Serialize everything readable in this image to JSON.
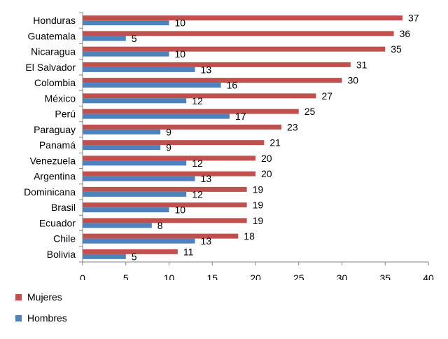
{
  "chart_data": {
    "type": "bar",
    "orientation": "horizontal",
    "categories": [
      "Honduras",
      "Guatemala",
      "Nicaragua",
      "El Salvador",
      "Colombia",
      "México",
      "Perú",
      "Paraguay",
      "Panamá",
      "Venezuela",
      "Argentina",
      "Dominicana",
      "Brasil",
      "Ecuador",
      "Chile",
      "Bolivia"
    ],
    "series": [
      {
        "name": "Mujeres",
        "color": "#C0504D",
        "values": [
          37,
          36,
          35,
          31,
          30,
          27,
          25,
          23,
          21,
          20,
          20,
          19,
          19,
          19,
          18,
          11
        ]
      },
      {
        "name": "Hombres",
        "color": "#4F81BD",
        "values": [
          10,
          5,
          10,
          13,
          16,
          12,
          17,
          9,
          9,
          12,
          13,
          12,
          10,
          8,
          13,
          5
        ]
      }
    ],
    "xlim": [
      0,
      40
    ],
    "xticks": [
      0,
      5,
      10,
      15,
      20,
      25,
      30,
      35,
      40
    ],
    "grid": false,
    "legend_position": "bottom-left",
    "data_labels": true
  }
}
